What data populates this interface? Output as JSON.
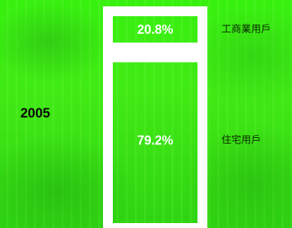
{
  "chart_data": {
    "type": "bar",
    "stacked": true,
    "categories": [
      "2005"
    ],
    "series": [
      {
        "name": "工商業用戶",
        "values": [
          20.8
        ]
      },
      {
        "name": "住宅用戶",
        "values": [
          79.2
        ]
      }
    ],
    "data_labels": [
      "20.8%",
      "79.2%"
    ],
    "unit": "%",
    "ylim": [
      0,
      100
    ],
    "legend": "right",
    "grid": false,
    "colors": {
      "segment_stroke": "#ffffff",
      "label_text": "#ffffff",
      "category_text": "#0a0a0a",
      "legend_text": "#0a2a00"
    }
  }
}
